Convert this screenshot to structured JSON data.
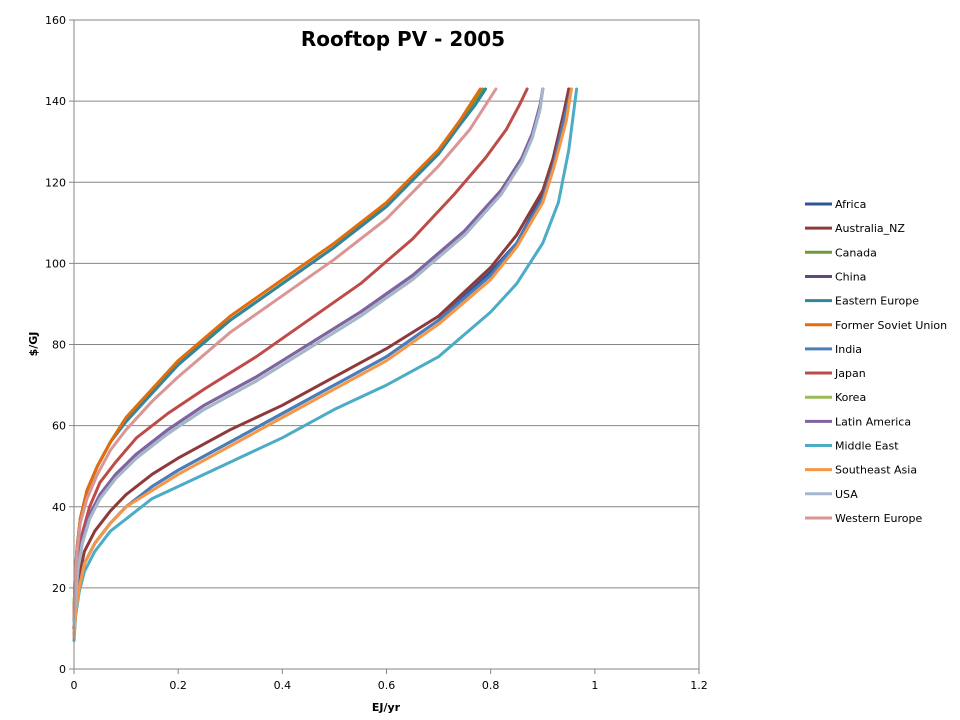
{
  "chart_data": {
    "type": "line",
    "title": "Rooftop PV - 2005",
    "xlabel": "EJ/yr",
    "ylabel": "$/GJ",
    "xlim": [
      0,
      1.2
    ],
    "ylim": [
      0,
      160
    ],
    "xticks": [
      "0",
      "0.2",
      "0.4",
      "0.6",
      "0.8",
      "1",
      "1.2"
    ],
    "yticks": [
      "0",
      "20",
      "40",
      "60",
      "80",
      "100",
      "120",
      "140",
      "160"
    ],
    "grid": "horizontal",
    "legend_position": "right",
    "series": [
      {
        "name": "Africa",
        "color": "#2F5597",
        "x": [
          0,
          0.003,
          0.01,
          0.02,
          0.04,
          0.07,
          0.1,
          0.15,
          0.2,
          0.3,
          0.4,
          0.5,
          0.6,
          0.7,
          0.8,
          0.85,
          0.9,
          0.92,
          0.94,
          0.95
        ],
        "y": [
          8,
          14,
          20,
          26,
          31,
          36,
          40,
          45,
          49,
          56,
          63,
          70,
          77,
          86,
          98,
          105,
          117,
          125,
          136,
          143
        ]
      },
      {
        "name": "Australia_NZ",
        "color": "#8E3A3A",
        "x": [
          0,
          0.003,
          0.01,
          0.02,
          0.04,
          0.07,
          0.1,
          0.15,
          0.2,
          0.3,
          0.4,
          0.5,
          0.6,
          0.7,
          0.8,
          0.85,
          0.9,
          0.92,
          0.94,
          0.95
        ],
        "y": [
          10,
          16,
          23,
          29,
          34,
          39,
          43,
          48,
          52,
          59,
          65,
          72,
          79,
          87,
          99,
          107,
          118,
          126,
          137,
          143
        ]
      },
      {
        "name": "Canada",
        "color": "#6E9A3A",
        "x": [
          0,
          0.002,
          0.006,
          0.012,
          0.025,
          0.045,
          0.07,
          0.1,
          0.15,
          0.2,
          0.3,
          0.4,
          0.5,
          0.6,
          0.7,
          0.74,
          0.77,
          0.785
        ],
        "y": [
          14,
          22,
          30,
          37,
          44,
          50,
          56,
          62,
          69,
          76,
          86,
          95,
          104,
          115,
          128,
          135,
          140,
          143
        ]
      },
      {
        "name": "China",
        "color": "#5F497A",
        "x": [
          0,
          0.003,
          0.008,
          0.016,
          0.03,
          0.05,
          0.08,
          0.12,
          0.18,
          0.25,
          0.35,
          0.45,
          0.55,
          0.65,
          0.75,
          0.82,
          0.86,
          0.88,
          0.895,
          0.9
        ],
        "y": [
          12,
          19,
          26,
          32,
          38,
          43,
          48,
          53,
          59,
          65,
          72,
          80,
          88,
          97,
          108,
          118,
          126,
          132,
          139,
          143
        ]
      },
      {
        "name": "Eastern Europe",
        "color": "#31859C",
        "x": [
          0,
          0.002,
          0.006,
          0.012,
          0.025,
          0.045,
          0.07,
          0.1,
          0.15,
          0.2,
          0.3,
          0.4,
          0.5,
          0.6,
          0.7,
          0.74,
          0.77,
          0.79
        ],
        "y": [
          14,
          22,
          30,
          37,
          44,
          50,
          56,
          61,
          68,
          75,
          86,
          95,
          104,
          114,
          127,
          134,
          139,
          143
        ]
      },
      {
        "name": "Former Soviet Union",
        "color": "#E46C0A",
        "x": [
          0,
          0.002,
          0.006,
          0.012,
          0.025,
          0.045,
          0.07,
          0.1,
          0.15,
          0.2,
          0.3,
          0.4,
          0.5,
          0.6,
          0.7,
          0.74,
          0.765,
          0.78
        ],
        "y": [
          14,
          22,
          30,
          37,
          44,
          50,
          56,
          62,
          69,
          76,
          87,
          96,
          105,
          115,
          128,
          135,
          140,
          143
        ]
      },
      {
        "name": "India",
        "color": "#4A7EBB",
        "x": [
          0,
          0.003,
          0.01,
          0.02,
          0.04,
          0.07,
          0.1,
          0.15,
          0.2,
          0.3,
          0.4,
          0.5,
          0.6,
          0.7,
          0.8,
          0.85,
          0.9,
          0.92,
          0.94,
          0.955
        ],
        "y": [
          8,
          14,
          20,
          26,
          31,
          36,
          40,
          45,
          49,
          56,
          63,
          70,
          77,
          86,
          97,
          105,
          116,
          124,
          135,
          143
        ]
      },
      {
        "name": "Japan",
        "color": "#BE4B48",
        "x": [
          0,
          0.003,
          0.008,
          0.015,
          0.03,
          0.05,
          0.08,
          0.12,
          0.18,
          0.25,
          0.35,
          0.45,
          0.55,
          0.65,
          0.73,
          0.79,
          0.83,
          0.855,
          0.87
        ],
        "y": [
          13,
          20,
          27,
          33,
          40,
          46,
          51,
          57,
          63,
          69,
          77,
          86,
          95,
          106,
          117,
          126,
          133,
          139,
          143
        ]
      },
      {
        "name": "Korea",
        "color": "#9BBB59",
        "x": [
          0,
          0.003,
          0.008,
          0.016,
          0.03,
          0.05,
          0.08,
          0.12,
          0.18,
          0.25,
          0.35,
          0.45,
          0.55,
          0.65,
          0.75,
          0.82,
          0.86,
          0.88,
          0.895,
          0.9
        ],
        "y": [
          11,
          18,
          25,
          31,
          37,
          42,
          47,
          52,
          58,
          64,
          71,
          79,
          87,
          96,
          107,
          117,
          125,
          131,
          138,
          143
        ]
      },
      {
        "name": "Latin America",
        "color": "#8064A2",
        "x": [
          0,
          0.003,
          0.008,
          0.016,
          0.03,
          0.05,
          0.08,
          0.12,
          0.18,
          0.25,
          0.35,
          0.45,
          0.55,
          0.65,
          0.75,
          0.82,
          0.86,
          0.88,
          0.895,
          0.9
        ],
        "y": [
          12,
          19,
          26,
          32,
          38,
          43,
          48,
          53,
          59,
          65,
          72,
          80,
          88,
          97,
          108,
          118,
          126,
          132,
          139,
          143
        ]
      },
      {
        "name": "Middle East",
        "color": "#4BACC6",
        "x": [
          0,
          0.003,
          0.01,
          0.02,
          0.04,
          0.07,
          0.1,
          0.15,
          0.2,
          0.3,
          0.4,
          0.5,
          0.6,
          0.7,
          0.8,
          0.85,
          0.9,
          0.93,
          0.95,
          0.965
        ],
        "y": [
          7,
          13,
          19,
          24,
          29,
          34,
          37,
          42,
          45,
          51,
          57,
          64,
          70,
          77,
          88,
          95,
          105,
          115,
          128,
          143
        ]
      },
      {
        "name": "Southeast Asia",
        "color": "#F79646",
        "x": [
          0,
          0.003,
          0.01,
          0.02,
          0.04,
          0.07,
          0.1,
          0.15,
          0.2,
          0.3,
          0.4,
          0.5,
          0.6,
          0.7,
          0.8,
          0.85,
          0.9,
          0.92,
          0.945,
          0.955
        ],
        "y": [
          8,
          14,
          20,
          26,
          31,
          36,
          40,
          44,
          48,
          55,
          62,
          69,
          76,
          85,
          96,
          104,
          115,
          123,
          135,
          143
        ]
      },
      {
        "name": "USA",
        "color": "#A5B7CD",
        "x": [
          0,
          0.003,
          0.008,
          0.016,
          0.03,
          0.05,
          0.08,
          0.12,
          0.18,
          0.25,
          0.35,
          0.45,
          0.55,
          0.65,
          0.75,
          0.82,
          0.86,
          0.88,
          0.895,
          0.9
        ],
        "y": [
          11,
          18,
          25,
          31,
          37,
          42,
          47,
          52,
          58,
          64,
          71,
          79,
          87,
          96,
          107,
          117,
          125,
          131,
          138,
          143
        ]
      },
      {
        "name": "Western Europe",
        "color": "#D99694",
        "x": [
          0,
          0.002,
          0.006,
          0.012,
          0.025,
          0.045,
          0.07,
          0.1,
          0.15,
          0.2,
          0.3,
          0.4,
          0.5,
          0.6,
          0.7,
          0.76,
          0.79,
          0.81
        ],
        "y": [
          13,
          21,
          29,
          36,
          42,
          48,
          54,
          59,
          66,
          72,
          83,
          92,
          101,
          111,
          124,
          133,
          139,
          143
        ]
      }
    ]
  }
}
